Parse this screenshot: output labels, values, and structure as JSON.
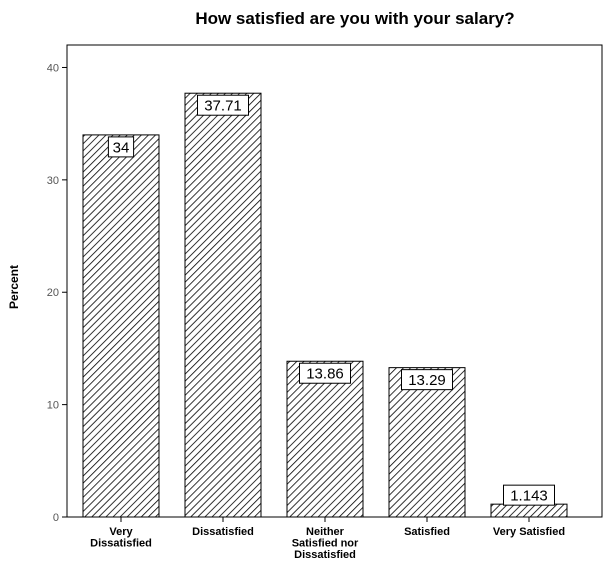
{
  "chart_data": {
    "type": "bar",
    "title": "How satisfied are you with your salary?",
    "xlabel": "",
    "ylabel": "Percent",
    "categories": [
      [
        "Very",
        "Dissatisfied"
      ],
      [
        "Dissatisfied"
      ],
      [
        "Neither",
        "Satisfied nor",
        "Dissatisfied"
      ],
      [
        "Satisfied"
      ],
      [
        "Very Satisfied"
      ]
    ],
    "values": [
      34,
      37.71,
      13.86,
      13.29,
      1.143
    ],
    "value_labels": [
      "34",
      "37.71",
      "13.86",
      "13.29",
      "1.143"
    ],
    "ylim": [
      0,
      42
    ],
    "yticks": [
      0,
      10,
      20,
      30,
      40
    ],
    "grid": false,
    "bar_fill": "diagonal-hatch",
    "colors": {
      "hatch": "#000000",
      "bar_border": "#000000",
      "frame": "#000000",
      "tick_text": "#555555"
    }
  }
}
